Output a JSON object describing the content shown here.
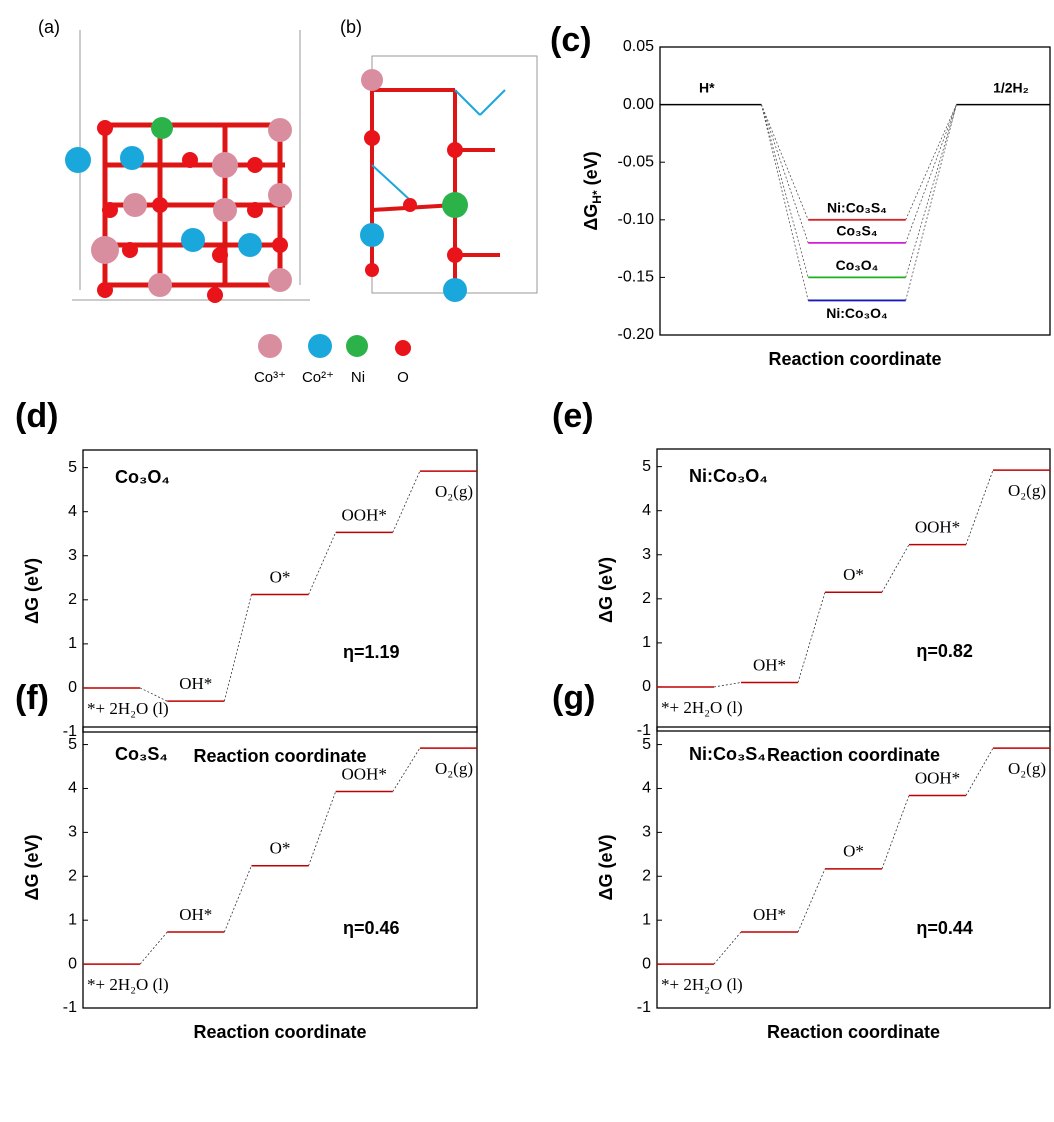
{
  "structure": {
    "panels": [
      "(a)",
      "(b)"
    ],
    "legend": [
      "Co³⁺",
      "Co²⁺",
      "Ni",
      "O"
    ]
  },
  "chart_data": [
    {
      "type": "level",
      "panel": "(c)",
      "ylabel": {
        "text": "ΔG",
        "sub": "H*",
        "unit": " (eV)"
      },
      "xlabel": "Reaction coordinate",
      "ylim": [
        -0.2,
        0.05
      ],
      "yticks": [
        0.05,
        {
          "value": 0,
          "label": "0.00"
        },
        -0.05,
        {
          "value": -0.1,
          "label": "-0.10"
        },
        -0.15,
        {
          "value": -0.2,
          "label": "-0.20"
        }
      ],
      "start_label": "H*",
      "end_label": "1/2H₂",
      "start_value": 0,
      "end_value": 0,
      "series": [
        {
          "name": "Ni:Co₃S₄",
          "color": "#d62728",
          "values": [
            -0.1
          ]
        },
        {
          "name": "Co₃S₄",
          "color": "#d81bd8",
          "values": [
            -0.12
          ]
        },
        {
          "name": "Co₃O₄",
          "color": "#1fb01f",
          "values": [
            -0.15
          ]
        },
        {
          "name": "Ni:Co₃O₄",
          "color": "#1a1ab8",
          "values": [
            -0.17
          ]
        }
      ]
    },
    {
      "type": "step",
      "panel": "(d)",
      "title": "Co₃O₄",
      "annotation": "η=1.19",
      "categories": [
        "*+ 2H₂O (l)",
        "OH*",
        "O*",
        "OOH*",
        "O₂(g)"
      ],
      "values": [
        0,
        -0.3,
        2.12,
        3.53,
        4.92
      ],
      "color": "#c00000",
      "ylim": [
        -1,
        5.4
      ],
      "yticks": [
        -1,
        0,
        1,
        2,
        3,
        4,
        5
      ],
      "ylabel": "ΔG (eV)",
      "xlabel": "Reaction coordinate"
    },
    {
      "type": "step",
      "panel": "(e)",
      "title": "Ni:Co₃O₄",
      "annotation": "η=0.82",
      "categories": [
        "*+ 2H₂O (l)",
        "OH*",
        "O*",
        "OOH*",
        "O₂(g)"
      ],
      "values": [
        0,
        0.1,
        2.15,
        3.23,
        4.92
      ],
      "color": "#c00000",
      "ylim": [
        -1,
        5.4
      ],
      "yticks": [
        -1,
        0,
        1,
        2,
        3,
        4,
        5
      ],
      "ylabel": "ΔG (eV)",
      "xlabel": "Reaction coordinate"
    },
    {
      "type": "step",
      "panel": "(f)",
      "title": "Co₃S₄",
      "annotation": "η=0.46",
      "categories": [
        "*+ 2H₂O (l)",
        "OH*",
        "O*",
        "OOH*",
        "O₂(g)"
      ],
      "values": [
        0,
        0.73,
        2.24,
        3.93,
        4.92
      ],
      "color": "#c00000",
      "ylim": [
        -1,
        5.4
      ],
      "yticks": [
        -1,
        0,
        1,
        2,
        3,
        4,
        5
      ],
      "ylabel": "ΔG (eV)",
      "xlabel": "Reaction coordinate"
    },
    {
      "type": "step",
      "panel": "(g)",
      "title": "Ni:Co₃S₄",
      "annotation": "η=0.44",
      "categories": [
        "*+ 2H₂O (l)",
        "OH*",
        "O*",
        "OOH*",
        "O₂(g)"
      ],
      "values": [
        0,
        0.73,
        2.17,
        3.84,
        4.92
      ],
      "color": "#c00000",
      "ylim": [
        -1,
        5.4
      ],
      "yticks": [
        -1,
        0,
        1,
        2,
        3,
        4,
        5
      ],
      "ylabel": "ΔG (eV)",
      "xlabel": "Reaction coordinate"
    }
  ]
}
